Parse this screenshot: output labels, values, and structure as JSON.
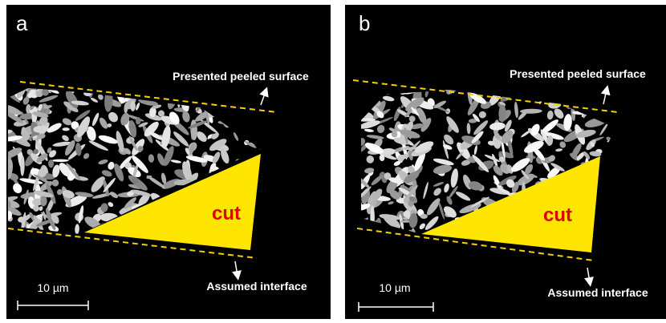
{
  "panels": [
    {
      "label": "a",
      "top_annotation": "Presented peeled surface",
      "bottom_annotation": "Assumed interface",
      "cut_label": "cut",
      "scale_bar": "10 µm"
    },
    {
      "label": "b",
      "top_annotation": "Presented peeled surface",
      "bottom_annotation": "Assumed interface",
      "cut_label": "cut",
      "scale_bar": "10 µm"
    }
  ]
}
